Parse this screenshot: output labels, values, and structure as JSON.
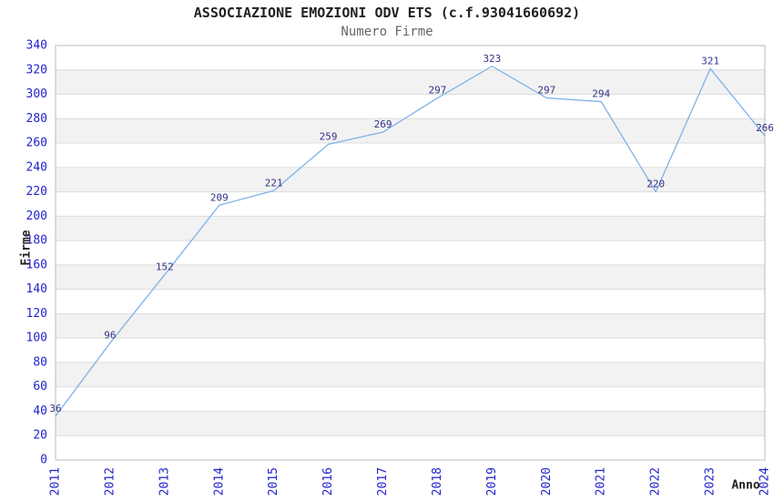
{
  "page": {
    "title": "ASSOCIAZIONE EMOZIONI ODV ETS (c.f.93041660692)",
    "subtitle": "Numero Firme"
  },
  "chart_data": {
    "type": "line",
    "title": "ASSOCIAZIONE EMOZIONI ODV ETS (c.f.93041660692)",
    "subtitle": "Numero Firme",
    "xlabel": "Anno",
    "ylabel": "Firme",
    "x": [
      "2011",
      "2012",
      "2013",
      "2014",
      "2015",
      "2016",
      "2017",
      "2018",
      "2019",
      "2020",
      "2021",
      "2022",
      "2023",
      "2024"
    ],
    "series": [
      {
        "name": "Numero Firme",
        "values": [
          36,
          96,
          152,
          209,
          221,
          259,
          269,
          297,
          323,
          297,
          294,
          220,
          321,
          266
        ]
      }
    ],
    "ylim": [
      0,
      340
    ],
    "y_tick_step": 20,
    "y_ticks": [
      0,
      20,
      40,
      60,
      80,
      100,
      120,
      140,
      160,
      180,
      200,
      220,
      240,
      260,
      280,
      300,
      320,
      340
    ],
    "grid": true,
    "legend_position": "none",
    "data_labels": true,
    "x_tick_rotation": -90,
    "styles": {
      "line_color": "#7EB2E8",
      "data_label_color": "#333388",
      "tick_color": "#2222CC",
      "band_color": "#F2F2F2",
      "grid_color": "#DCDCDC",
      "border_color": "#BBBBBB",
      "title_color": "#222222",
      "subtitle_color": "#666666",
      "axis_label_color": "#222222",
      "background": "#FFFFFF"
    }
  }
}
